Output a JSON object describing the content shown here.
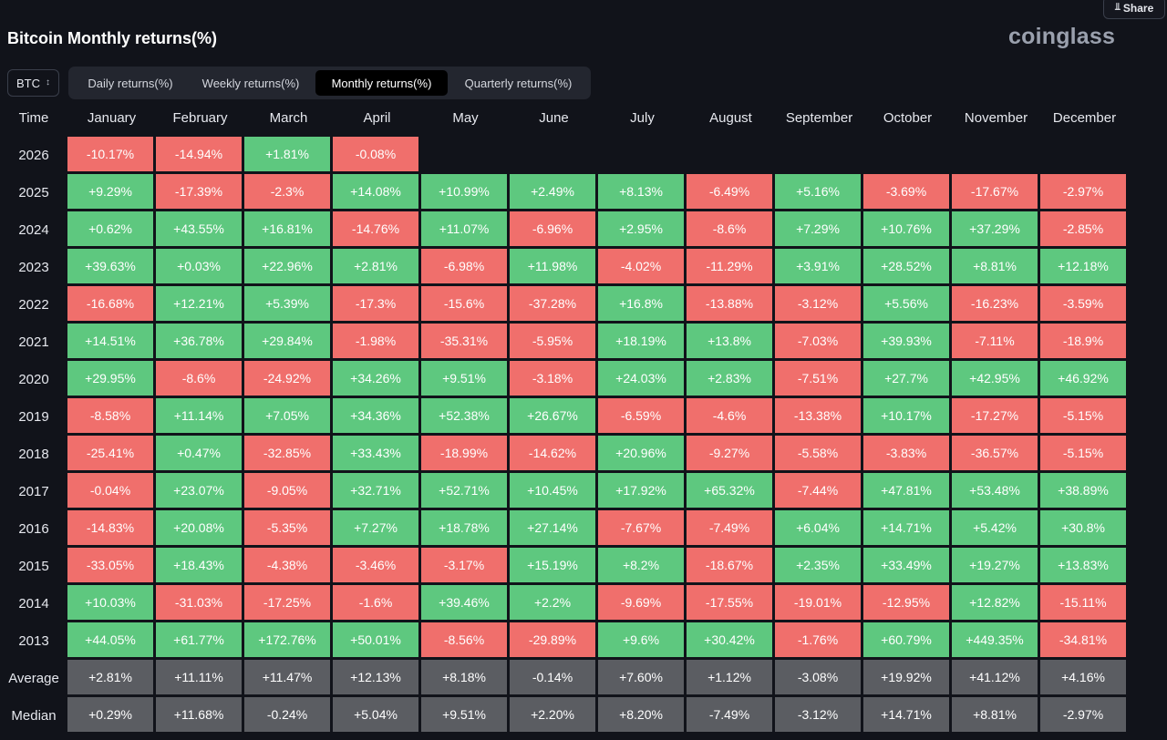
{
  "share_label": "Share",
  "title": "Bitcoin Monthly returns(%)",
  "brand": "coinglass",
  "coin_select": {
    "value": "BTC"
  },
  "tabs": [
    {
      "label": "Daily returns(%)",
      "active": false
    },
    {
      "label": "Weekly returns(%)",
      "active": false
    },
    {
      "label": "Monthly returns(%)",
      "active": true
    },
    {
      "label": "Quarterly returns(%)",
      "active": false
    }
  ],
  "colors": {
    "positive": "#5ec87f",
    "negative": "#f06f6c",
    "stat": "#5b5d62",
    "background": "#11131a"
  },
  "chart_data": {
    "type": "table",
    "title": "Bitcoin Monthly returns(%)",
    "row_header": "Time",
    "columns": [
      "January",
      "February",
      "March",
      "April",
      "May",
      "June",
      "July",
      "August",
      "September",
      "October",
      "November",
      "December"
    ],
    "rows": [
      {
        "label": "2026",
        "values": [
          "-10.17%",
          "-14.94%",
          "+1.81%",
          "-0.08%",
          null,
          null,
          null,
          null,
          null,
          null,
          null,
          null
        ]
      },
      {
        "label": "2025",
        "values": [
          "+9.29%",
          "-17.39%",
          "-2.3%",
          "+14.08%",
          "+10.99%",
          "+2.49%",
          "+8.13%",
          "-6.49%",
          "+5.16%",
          "-3.69%",
          "-17.67%",
          "-2.97%"
        ]
      },
      {
        "label": "2024",
        "values": [
          "+0.62%",
          "+43.55%",
          "+16.81%",
          "-14.76%",
          "+11.07%",
          "-6.96%",
          "+2.95%",
          "-8.6%",
          "+7.29%",
          "+10.76%",
          "+37.29%",
          "-2.85%"
        ]
      },
      {
        "label": "2023",
        "values": [
          "+39.63%",
          "+0.03%",
          "+22.96%",
          "+2.81%",
          "-6.98%",
          "+11.98%",
          "-4.02%",
          "-11.29%",
          "+3.91%",
          "+28.52%",
          "+8.81%",
          "+12.18%"
        ]
      },
      {
        "label": "2022",
        "values": [
          "-16.68%",
          "+12.21%",
          "+5.39%",
          "-17.3%",
          "-15.6%",
          "-37.28%",
          "+16.8%",
          "-13.88%",
          "-3.12%",
          "+5.56%",
          "-16.23%",
          "-3.59%"
        ]
      },
      {
        "label": "2021",
        "values": [
          "+14.51%",
          "+36.78%",
          "+29.84%",
          "-1.98%",
          "-35.31%",
          "-5.95%",
          "+18.19%",
          "+13.8%",
          "-7.03%",
          "+39.93%",
          "-7.11%",
          "-18.9%"
        ]
      },
      {
        "label": "2020",
        "values": [
          "+29.95%",
          "-8.6%",
          "-24.92%",
          "+34.26%",
          "+9.51%",
          "-3.18%",
          "+24.03%",
          "+2.83%",
          "-7.51%",
          "+27.7%",
          "+42.95%",
          "+46.92%"
        ]
      },
      {
        "label": "2019",
        "values": [
          "-8.58%",
          "+11.14%",
          "+7.05%",
          "+34.36%",
          "+52.38%",
          "+26.67%",
          "-6.59%",
          "-4.6%",
          "-13.38%",
          "+10.17%",
          "-17.27%",
          "-5.15%"
        ]
      },
      {
        "label": "2018",
        "values": [
          "-25.41%",
          "+0.47%",
          "-32.85%",
          "+33.43%",
          "-18.99%",
          "-14.62%",
          "+20.96%",
          "-9.27%",
          "-5.58%",
          "-3.83%",
          "-36.57%",
          "-5.15%"
        ]
      },
      {
        "label": "2017",
        "values": [
          "-0.04%",
          "+23.07%",
          "-9.05%",
          "+32.71%",
          "+52.71%",
          "+10.45%",
          "+17.92%",
          "+65.32%",
          "-7.44%",
          "+47.81%",
          "+53.48%",
          "+38.89%"
        ]
      },
      {
        "label": "2016",
        "values": [
          "-14.83%",
          "+20.08%",
          "-5.35%",
          "+7.27%",
          "+18.78%",
          "+27.14%",
          "-7.67%",
          "-7.49%",
          "+6.04%",
          "+14.71%",
          "+5.42%",
          "+30.8%"
        ]
      },
      {
        "label": "2015",
        "values": [
          "-33.05%",
          "+18.43%",
          "-4.38%",
          "-3.46%",
          "-3.17%",
          "+15.19%",
          "+8.2%",
          "-18.67%",
          "+2.35%",
          "+33.49%",
          "+19.27%",
          "+13.83%"
        ]
      },
      {
        "label": "2014",
        "values": [
          "+10.03%",
          "-31.03%",
          "-17.25%",
          "-1.6%",
          "+39.46%",
          "+2.2%",
          "-9.69%",
          "-17.55%",
          "-19.01%",
          "-12.95%",
          "+12.82%",
          "-15.11%"
        ]
      },
      {
        "label": "2013",
        "values": [
          "+44.05%",
          "+61.77%",
          "+172.76%",
          "+50.01%",
          "-8.56%",
          "-29.89%",
          "+9.6%",
          "+30.42%",
          "-1.76%",
          "+60.79%",
          "+449.35%",
          "-34.81%"
        ]
      }
    ],
    "summary_rows": [
      {
        "label": "Average",
        "values": [
          "+2.81%",
          "+11.11%",
          "+11.47%",
          "+12.13%",
          "+8.18%",
          "-0.14%",
          "+7.60%",
          "+1.12%",
          "-3.08%",
          "+19.92%",
          "+41.12%",
          "+4.16%"
        ]
      },
      {
        "label": "Median",
        "values": [
          "+0.29%",
          "+11.68%",
          "-0.24%",
          "+5.04%",
          "+9.51%",
          "+2.20%",
          "+8.20%",
          "-7.49%",
          "-3.12%",
          "+14.71%",
          "+8.81%",
          "-2.97%"
        ]
      }
    ]
  }
}
